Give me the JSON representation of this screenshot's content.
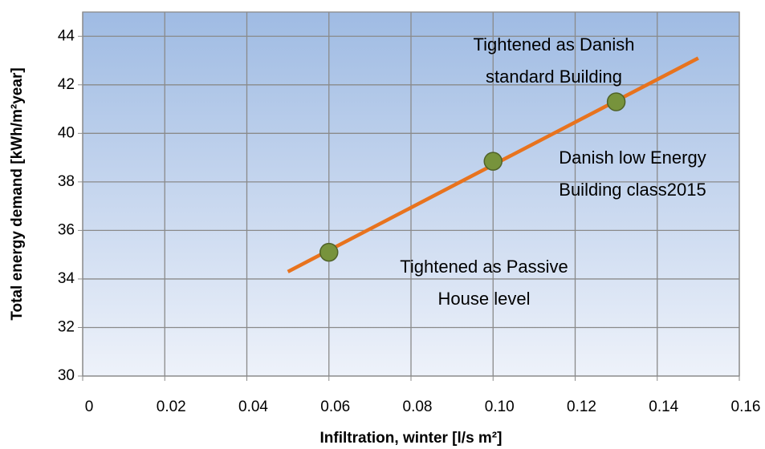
{
  "chart_data": {
    "type": "scatter",
    "xlabel": "Infiltration, winter [l/s m²]",
    "ylabel": "Total energy demand [kWh/m²year]",
    "xlim": [
      0,
      0.16
    ],
    "ylim": [
      30,
      45
    ],
    "xticks": [
      0,
      0.02,
      0.04,
      0.06,
      0.08,
      {
        "value": 0.1,
        "label": "0.10"
      },
      0.12,
      0.14,
      0.16
    ],
    "yticks": [
      30,
      32,
      34,
      36,
      38,
      40,
      42,
      44
    ],
    "grid": true,
    "series": [
      {
        "type": "line",
        "color": "#e8731e",
        "x": [
          0.05,
          0.15
        ],
        "values": [
          34.3,
          43.1
        ]
      },
      {
        "type": "scatter",
        "color": "#77933c",
        "x": [
          0.06,
          0.1,
          0.13
        ],
        "values": [
          35.1,
          38.85,
          41.3
        ]
      }
    ],
    "annotations": [
      [
        "Tightened as Danish",
        "standard Building"
      ],
      [
        "Danish low Energy",
        "Building class2015"
      ],
      [
        "Tightened as Passive",
        "House level"
      ]
    ]
  }
}
